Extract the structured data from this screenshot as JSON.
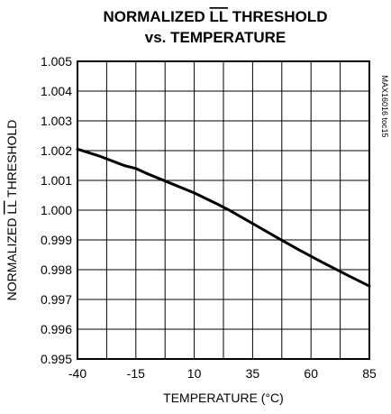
{
  "chart_data": {
    "type": "line",
    "title_line1_pre": "NORMALIZED ",
    "title_line1_overline": "LL",
    "title_line1_post": " THRESHOLD",
    "title_line2": "vs. TEMPERATURE",
    "xlabel": "TEMPERATURE (°C)",
    "ylabel_pre": "NORMALIZED ",
    "ylabel_overline": "LL",
    "ylabel_post": " THRESHOLD",
    "part_note": "MAX16016 toc15",
    "xlim": [
      -40,
      85
    ],
    "ylim": [
      0.995,
      1.005
    ],
    "x_ticks": [
      "-40",
      "-15",
      "10",
      "35",
      "60",
      "85"
    ],
    "y_ticks": [
      "1.005",
      "1.004",
      "1.003",
      "1.002",
      "1.001",
      "1.000",
      "0.999",
      "0.998",
      "0.997",
      "0.996",
      "0.995"
    ],
    "x_grid_values": [
      -40,
      -27.5,
      -15,
      -2.5,
      10,
      22.5,
      35,
      47.5,
      60,
      72.5,
      85
    ],
    "y_grid_values": [
      0.995,
      0.996,
      0.997,
      0.998,
      0.999,
      1.0,
      1.001,
      1.002,
      1.003,
      1.004,
      1.005
    ],
    "grid": true,
    "series": [
      {
        "x": [
          -40,
          -30,
          -20,
          -15,
          -10,
          0,
          10,
          20,
          25,
          35,
          45,
          55,
          65,
          75,
          85
        ],
        "y": [
          1.00205,
          1.0018,
          1.0015,
          1.0014,
          1.00122,
          1.0009,
          1.00058,
          1.0002,
          1.0,
          0.99955,
          0.9991,
          0.99866,
          0.99824,
          0.99784,
          0.99745
        ]
      }
    ]
  }
}
